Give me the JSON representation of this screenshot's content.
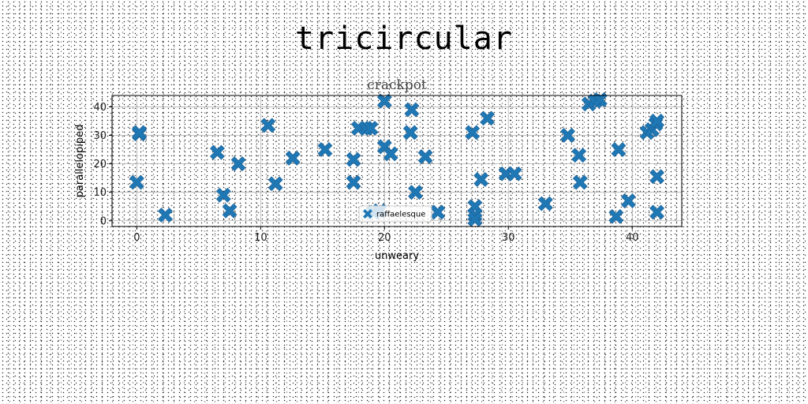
{
  "figure_title": "tricircular",
  "chart_data": {
    "type": "scatter",
    "title": "crackpot",
    "xlabel": "unweary",
    "ylabel": "parallelopiped",
    "xlim": [
      -2,
      44
    ],
    "ylim": [
      -2,
      44
    ],
    "xticks": [
      0,
      10,
      20,
      30,
      40
    ],
    "yticks": [
      0,
      10,
      20,
      30,
      40
    ],
    "grid": true,
    "legend_position": "lower-center",
    "marker": "X",
    "color": "#1f77b4",
    "series": [
      {
        "name": "raffaelesque",
        "points": [
          [
            0.2,
            30.5
          ],
          [
            0.2,
            31
          ],
          [
            0.0,
            13.5
          ],
          [
            2.3,
            2
          ],
          [
            6.5,
            24
          ],
          [
            7.0,
            9
          ],
          [
            7.5,
            3.5
          ],
          [
            8.2,
            20
          ],
          [
            10.6,
            33.5
          ],
          [
            11.2,
            13
          ],
          [
            12.6,
            22
          ],
          [
            15.2,
            25
          ],
          [
            17.5,
            21.5
          ],
          [
            17.5,
            13.5
          ],
          [
            17.9,
            32.5
          ],
          [
            18.5,
            32.5
          ],
          [
            18.9,
            32.5
          ],
          [
            19.1,
            3
          ],
          [
            19.6,
            3.5
          ],
          [
            20.0,
            42
          ],
          [
            20.0,
            26
          ],
          [
            20.5,
            23.5
          ],
          [
            22.1,
            31
          ],
          [
            22.2,
            39
          ],
          [
            22.5,
            10
          ],
          [
            23.3,
            22.5
          ],
          [
            24.3,
            3
          ],
          [
            27.1,
            31
          ],
          [
            27.3,
            5
          ],
          [
            27.3,
            2
          ],
          [
            27.3,
            0.5
          ],
          [
            27.8,
            14.5
          ],
          [
            28.3,
            36
          ],
          [
            29.8,
            16.5
          ],
          [
            30.5,
            16.5
          ],
          [
            33.0,
            6
          ],
          [
            34.8,
            30
          ],
          [
            35.7,
            23
          ],
          [
            35.8,
            13.5
          ],
          [
            36.5,
            41
          ],
          [
            37.0,
            42
          ],
          [
            37.4,
            42.5
          ],
          [
            38.7,
            1.5
          ],
          [
            38.9,
            25
          ],
          [
            39.7,
            7
          ],
          [
            41.2,
            31
          ],
          [
            41.6,
            32
          ],
          [
            41.9,
            34
          ],
          [
            42.0,
            35
          ],
          [
            42.0,
            15.5
          ],
          [
            42.0,
            3
          ]
        ]
      }
    ]
  }
}
